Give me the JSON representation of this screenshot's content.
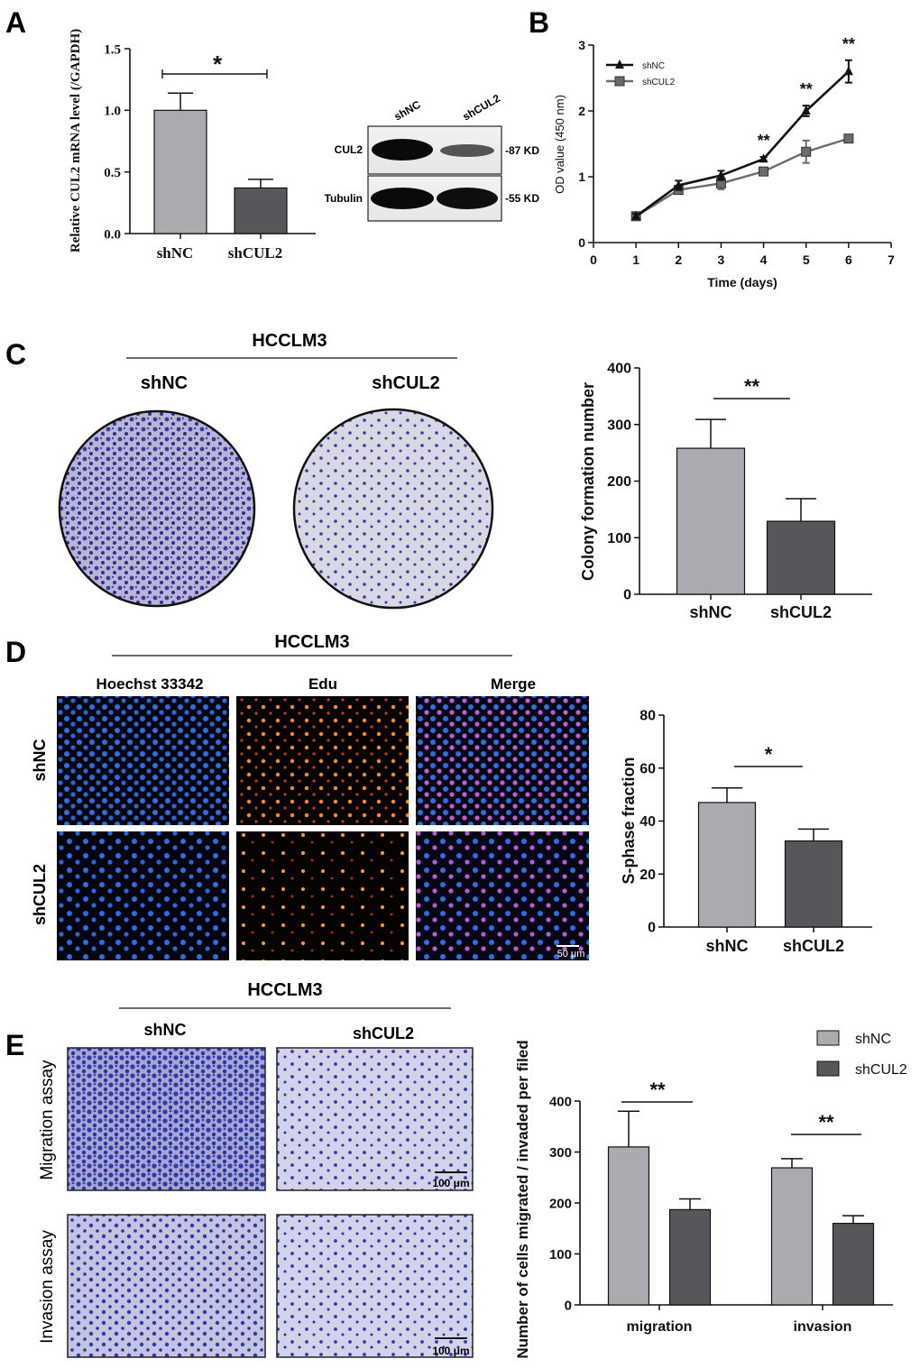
{
  "panel_letters": {
    "a": "A",
    "b": "B",
    "c": "C",
    "d": "D",
    "e": "E"
  },
  "labels": {
    "hcclm3": "HCCLM3",
    "shNC": "shNC",
    "shCUL2": "shCUL2",
    "hoechst": "Hoechst 33342",
    "edu": "Edu",
    "merge": "Merge",
    "migration_assay": "Migration assay",
    "invasion_assay": "Invasion assay",
    "scale_50": "50 μm",
    "scale_100": "100 μm"
  },
  "western": {
    "lanes": [
      "shNC",
      "shCUL2"
    ],
    "bands": [
      {
        "protein": "CUL2",
        "size": "-87 KD"
      },
      {
        "protein": "Tubulin",
        "size": "-55 KD"
      }
    ]
  },
  "colors": {
    "shNC_bar": "#a9abb0",
    "shCUL2_bar": "#55575b",
    "shNC_line": "#111111",
    "shCUL2_line": "#6b6b6b",
    "crystal_violet": "#3b3a9a",
    "hoechst_blue": "#2d6de0",
    "edu_orange": "#ff8a20"
  },
  "chart_data": [
    {
      "id": "A",
      "type": "bar",
      "ylabel": "Relative CUL2 mRNA level (/GAPDH)",
      "categories": [
        "shNC",
        "shCUL2"
      ],
      "values": [
        1.0,
        0.37
      ],
      "errors": [
        0.14,
        0.07
      ],
      "ylim": [
        0,
        1.5
      ],
      "yticks": [
        "0.0",
        "0.5",
        "1.0",
        "1.5"
      ],
      "significance": "*"
    },
    {
      "id": "B",
      "type": "line",
      "xlabel": "Time (days)",
      "ylabel": "OD value (450 nm)",
      "x": [
        1,
        2,
        3,
        4,
        5,
        6
      ],
      "xlim": [
        0,
        7
      ],
      "ylim": [
        0,
        3
      ],
      "xticks": [
        "0",
        "1",
        "2",
        "3",
        "4",
        "5",
        "6",
        "7"
      ],
      "yticks": [
        "0",
        "1",
        "2",
        "3"
      ],
      "legend": "top-left",
      "series": [
        {
          "name": "shNC",
          "values": [
            0.4,
            0.87,
            1.02,
            1.27,
            2.0,
            2.6
          ],
          "errors": [
            0.04,
            0.07,
            0.07,
            0.03,
            0.08,
            0.17
          ]
        },
        {
          "name": "shCUL2",
          "values": [
            0.4,
            0.8,
            0.9,
            1.08,
            1.38,
            1.58
          ],
          "errors": [
            0.04,
            0.06,
            0.09,
            0.04,
            0.17,
            0.05
          ]
        }
      ],
      "significance": [
        {
          "x": 4,
          "text": "**"
        },
        {
          "x": 5,
          "text": "**"
        },
        {
          "x": 6,
          "text": "**"
        }
      ]
    },
    {
      "id": "C",
      "type": "bar",
      "ylabel": "Colony formation number",
      "categories": [
        "shNC",
        "shCUL2"
      ],
      "values": [
        258,
        129
      ],
      "errors": [
        51,
        40
      ],
      "ylim": [
        0,
        400
      ],
      "yticks": [
        "0",
        "100",
        "200",
        "300",
        "400"
      ],
      "significance": "**"
    },
    {
      "id": "D",
      "type": "bar",
      "ylabel": "S-phase fraction",
      "categories": [
        "shNC",
        "shCUL2"
      ],
      "values": [
        47,
        32.5
      ],
      "errors": [
        5.5,
        4.5
      ],
      "ylim": [
        0,
        80
      ],
      "yticks": [
        "0",
        "20",
        "40",
        "60",
        "80"
      ],
      "significance": "*"
    },
    {
      "id": "E",
      "type": "bar",
      "ylabel": "Number of cells migrated / invaded per filed",
      "categories": [
        "migration",
        "invasion"
      ],
      "legend": "top-right",
      "series": [
        {
          "name": "shNC",
          "values": [
            310,
            269
          ],
          "errors": [
            70,
            18
          ]
        },
        {
          "name": "shCUL2",
          "values": [
            187,
            160
          ],
          "errors": [
            21,
            15
          ]
        }
      ],
      "ylim": [
        0,
        400
      ],
      "yticks": [
        "0",
        "100",
        "200",
        "300",
        "400"
      ],
      "significance": [
        "**",
        "**"
      ]
    }
  ]
}
